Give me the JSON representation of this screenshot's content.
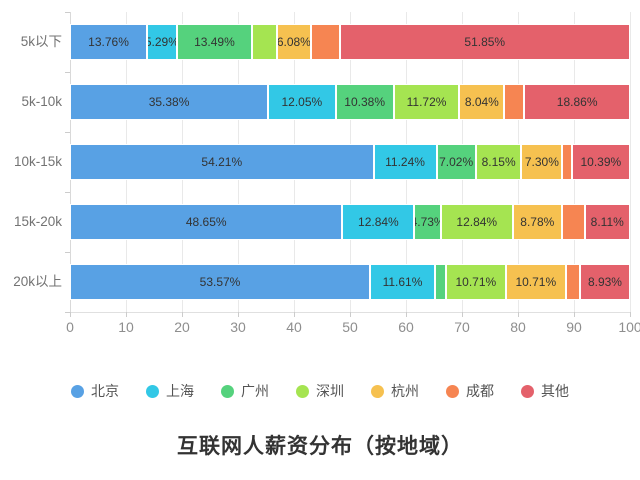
{
  "chart_data": {
    "type": "bar",
    "stacked": true,
    "orientation": "horizontal",
    "title": "互联网人薪资分布（按地域）",
    "categories": [
      "5k以下",
      "5k-10k",
      "10k-15k",
      "15k-20k",
      "20k以上"
    ],
    "xlim": [
      0,
      100
    ],
    "xticks": [
      0,
      10,
      20,
      30,
      40,
      50,
      60,
      70,
      80,
      90,
      100
    ],
    "grid": true,
    "legend_position": "bottom",
    "series": [
      {
        "name": "北京",
        "color": "#58A1E4",
        "values": [
          13.76,
          35.38,
          54.21,
          48.65,
          53.57
        ],
        "labels": [
          "13.76%",
          "35.38%",
          "54.21%",
          "48.65%",
          "53.57%"
        ]
      },
      {
        "name": "上海",
        "color": "#32C8E6",
        "values": [
          5.29,
          12.05,
          11.24,
          12.84,
          11.61
        ],
        "labels": [
          "5.29%",
          "12.05%",
          "11.24%",
          "12.84%",
          "11.61%"
        ]
      },
      {
        "name": "广州",
        "color": "#55D27D",
        "values": [
          13.49,
          10.38,
          7.02,
          4.73,
          1.94
        ],
        "labels": [
          "13.49%",
          "10.38%",
          "7.02%",
          "4.73%",
          ""
        ]
      },
      {
        "name": "深圳",
        "color": "#A5E451",
        "values": [
          4.4,
          11.72,
          8.15,
          12.84,
          10.71
        ],
        "labels": [
          "",
          "11.72%",
          "8.15%",
          "12.84%",
          "10.71%"
        ]
      },
      {
        "name": "杭州",
        "color": "#F6C150",
        "values": [
          6.08,
          8.04,
          7.3,
          8.78,
          10.71
        ],
        "labels": [
          "6.08%",
          "8.04%",
          "7.30%",
          "8.78%",
          "10.71%"
        ]
      },
      {
        "name": "成都",
        "color": "#F68552",
        "values": [
          5.13,
          3.57,
          1.69,
          4.05,
          2.53
        ],
        "labels": [
          "",
          "",
          "",
          "",
          ""
        ]
      },
      {
        "name": "其他",
        "color": "#E4616B",
        "values": [
          51.85,
          18.86,
          10.39,
          8.11,
          8.93
        ],
        "labels": [
          "51.85%",
          "18.86%",
          "10.39%",
          "8.11%",
          "8.93%"
        ]
      }
    ]
  }
}
